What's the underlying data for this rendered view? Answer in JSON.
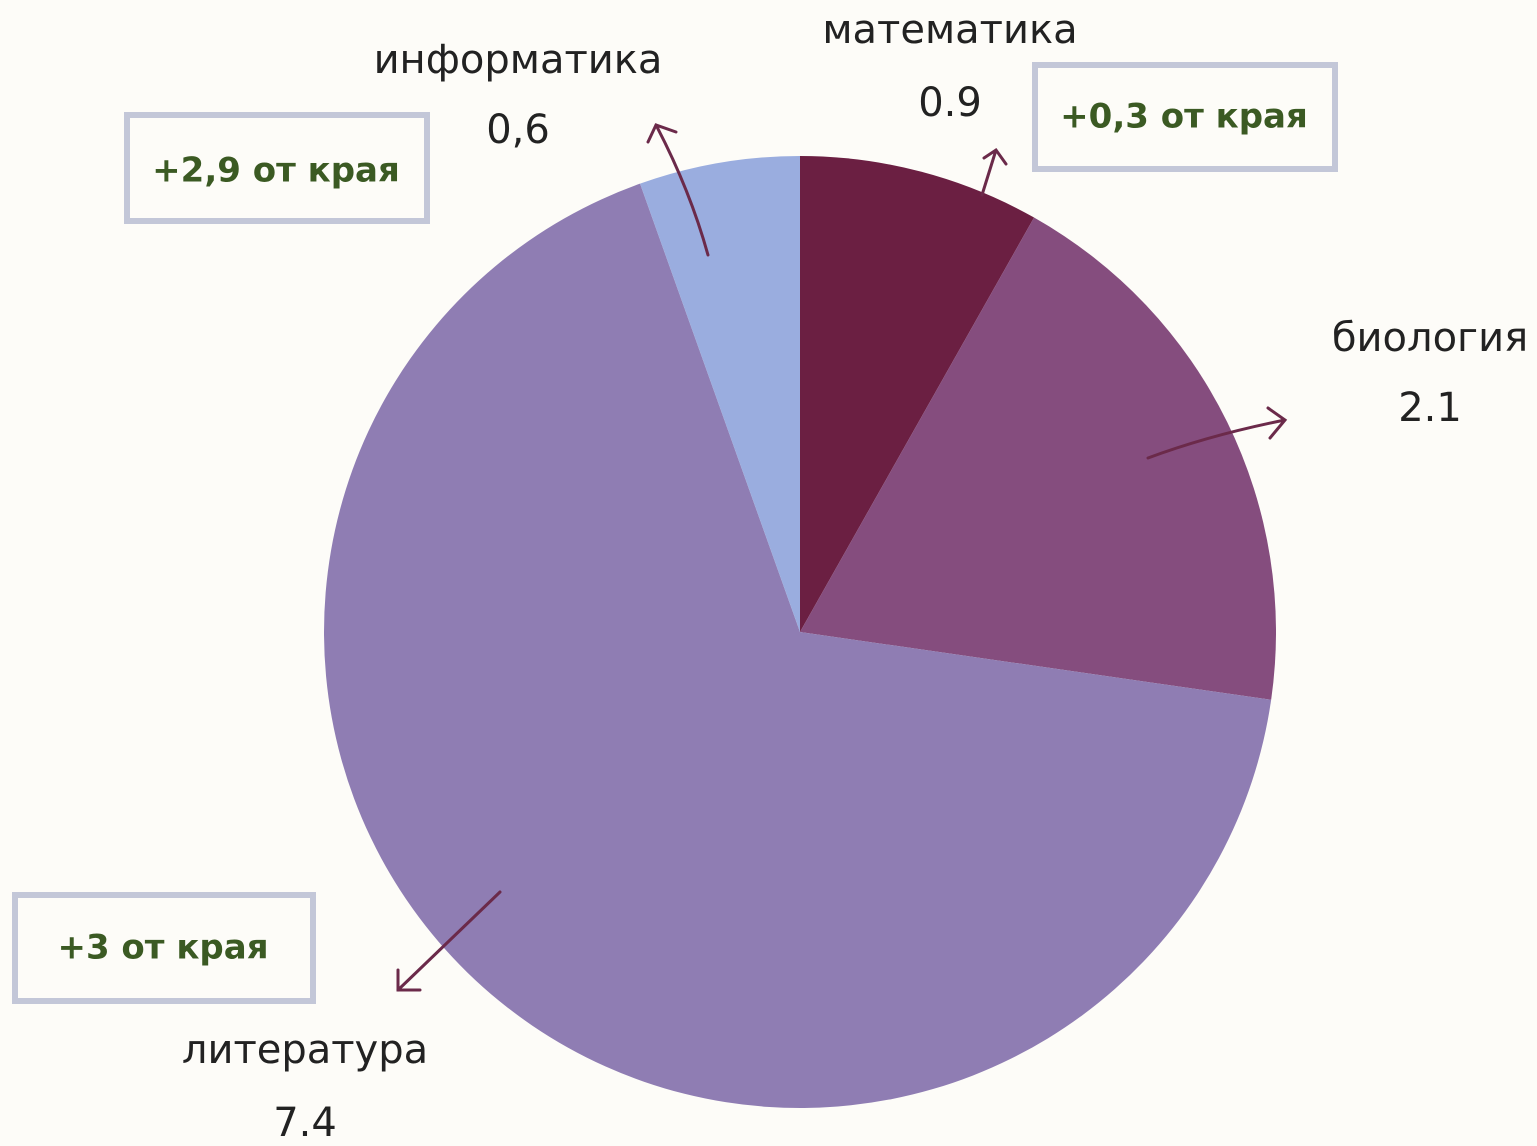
{
  "chart_data": {
    "type": "pie",
    "categories": [
      "математика",
      "биология",
      "литература",
      "информатика"
    ],
    "values": [
      0.9,
      2.1,
      7.4,
      0.6
    ],
    "value_labels": [
      "0.9",
      "2.1",
      "7.4",
      "0,6"
    ],
    "colors": [
      "#6b1f42",
      "#854d7e",
      "#8f7db3",
      "#9aaddf"
    ],
    "annotations": [
      "+2,9 от края",
      "+0,3 от края",
      "+3 от края"
    ]
  }
}
